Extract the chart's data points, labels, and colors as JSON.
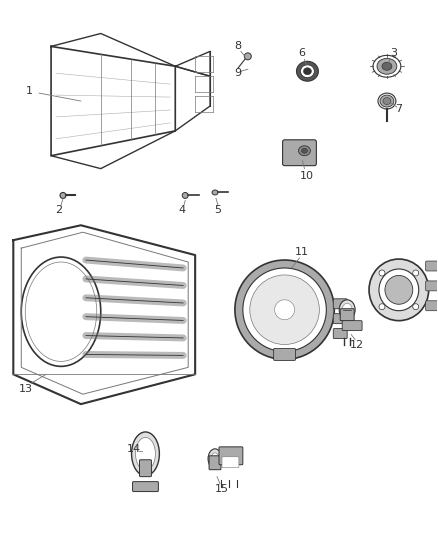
{
  "background_color": "#ffffff",
  "label_color": "#333333",
  "figsize": [
    4.38,
    5.33
  ],
  "dpi": 100
}
